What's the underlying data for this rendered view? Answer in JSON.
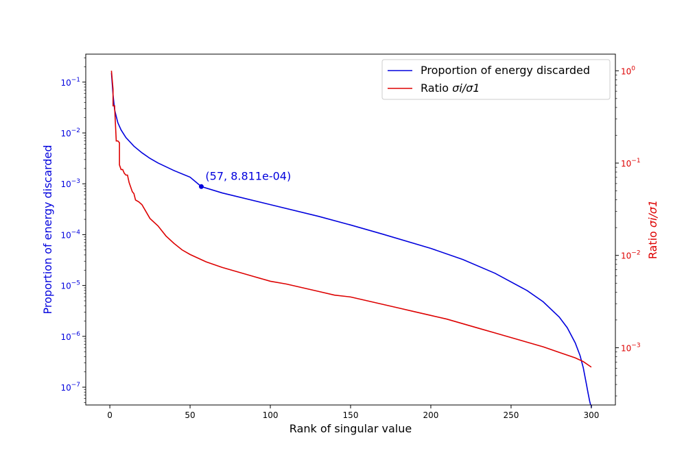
{
  "chart_data": {
    "type": "line",
    "title": "",
    "xlabel": "Rank of singular value",
    "ylabel_left": "Proportion of energy discarded",
    "ylabel_right_prefix": "Ratio ",
    "ylabel_right_math": "σi/σ1",
    "xlim": [
      -15,
      315
    ],
    "xticks": [
      0,
      50,
      100,
      150,
      200,
      250,
      300
    ],
    "ylim_left": [
      -7.35,
      -0.45
    ],
    "ylim_right": [
      -3.62,
      0.18
    ],
    "yticks_left": [
      {
        "mant": "10",
        "exp": "−1",
        "value": -1
      },
      {
        "mant": "10",
        "exp": "−2",
        "value": -2
      },
      {
        "mant": "10",
        "exp": "−3",
        "value": -3
      },
      {
        "mant": "10",
        "exp": "−4",
        "value": -4
      },
      {
        "mant": "10",
        "exp": "−5",
        "value": -5
      },
      {
        "mant": "10",
        "exp": "−6",
        "value": -6
      },
      {
        "mant": "10",
        "exp": "−7",
        "value": -7
      }
    ],
    "yticks_right": [
      {
        "mant": "10",
        "exp": "0",
        "value": 0
      },
      {
        "mant": "10",
        "exp": "−1",
        "value": -1
      },
      {
        "mant": "10",
        "exp": "−2",
        "value": -2
      },
      {
        "mant": "10",
        "exp": "−3",
        "value": -3
      }
    ],
    "legend_position": "top-right",
    "colors": {
      "energy": "#0000dd",
      "ratio": "#dd0000",
      "axis": "#000000"
    },
    "series": [
      {
        "name": "Proportion of energy discarded",
        "legend_label": "Proportion of energy discarded",
        "axis": "left",
        "color": "#0000dd",
        "scale": "log10",
        "x": [
          1,
          2,
          3,
          5,
          7,
          10,
          15,
          20,
          25,
          30,
          40,
          50,
          57,
          70,
          100,
          130,
          150,
          170,
          200,
          220,
          240,
          260,
          270,
          280,
          285,
          290,
          293,
          295,
          297,
          298,
          299,
          300
        ],
        "y_log10": [
          -0.82,
          -1.25,
          -1.55,
          -1.8,
          -1.94,
          -2.09,
          -2.26,
          -2.39,
          -2.5,
          -2.59,
          -2.74,
          -2.87,
          -3.055,
          -3.18,
          -3.41,
          -3.64,
          -3.81,
          -3.99,
          -4.27,
          -4.49,
          -4.76,
          -5.1,
          -5.32,
          -5.62,
          -5.83,
          -6.13,
          -6.38,
          -6.62,
          -6.95,
          -7.12,
          -7.28,
          -7.4
        ]
      },
      {
        "name": "Ratio σi/σ1",
        "legend_prefix": "Ratio ",
        "legend_math": "σi/σ1",
        "axis": "right",
        "color": "#dd0000",
        "scale": "log10",
        "x": [
          1,
          2,
          2,
          3,
          3,
          4,
          5,
          6,
          6,
          7,
          8,
          9,
          10,
          11,
          12,
          13,
          14,
          15,
          16,
          18,
          20,
          22,
          25,
          30,
          35,
          40,
          45,
          50,
          55,
          60,
          70,
          80,
          90,
          100,
          110,
          120,
          130,
          140,
          150,
          160,
          170,
          180,
          190,
          200,
          210,
          220,
          230,
          240,
          250,
          260,
          270,
          280,
          290,
          295,
          300
        ],
        "y_log10": [
          0.0,
          -0.2,
          -0.38,
          -0.38,
          -0.4,
          -0.76,
          -0.76,
          -0.78,
          -1.02,
          -1.07,
          -1.07,
          -1.11,
          -1.13,
          -1.13,
          -1.21,
          -1.26,
          -1.31,
          -1.33,
          -1.4,
          -1.42,
          -1.45,
          -1.51,
          -1.6,
          -1.68,
          -1.79,
          -1.87,
          -1.94,
          -1.99,
          -2.03,
          -2.07,
          -2.13,
          -2.18,
          -2.23,
          -2.28,
          -2.31,
          -2.35,
          -2.39,
          -2.43,
          -2.45,
          -2.49,
          -2.53,
          -2.57,
          -2.61,
          -2.65,
          -2.69,
          -2.74,
          -2.79,
          -2.84,
          -2.89,
          -2.94,
          -2.99,
          -3.05,
          -3.11,
          -3.15,
          -3.21
        ]
      }
    ],
    "annotation": {
      "text": "(57, 8.811e-04)",
      "x": 57,
      "y_log10": -3.055,
      "color": "#0000dd"
    }
  }
}
